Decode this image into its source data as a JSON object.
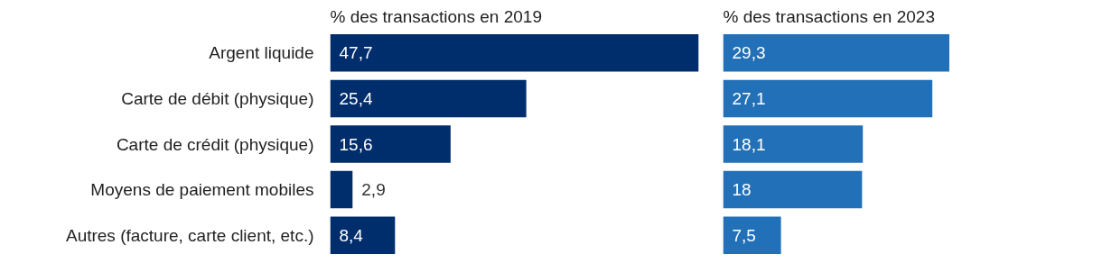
{
  "chart_data": [
    {
      "type": "bar",
      "orientation": "horizontal",
      "title": "% des transactions en 2019",
      "categories": [
        "Argent liquide",
        "Carte de débit (physique)",
        "Carte de crédit (physique)",
        "Moyens de paiement mobiles",
        "Autres (facture, carte client, etc.)"
      ],
      "values": [
        47.7,
        25.4,
        15.6,
        2.9,
        8.4
      ],
      "value_labels": [
        "47,7",
        "25,4",
        "15,6",
        "2,9",
        "8,4"
      ],
      "color": "#002d6b",
      "tick_labels": "y"
    },
    {
      "type": "bar",
      "orientation": "horizontal",
      "title": "% des transactions en 2023",
      "categories": [
        null,
        null,
        null,
        null,
        null
      ],
      "values": [
        29.3,
        27.1,
        18.1,
        18,
        7.5
      ],
      "value_labels": [
        "29,3",
        "27,1",
        "18,1",
        "18",
        "7,5"
      ],
      "color": "#2170b8",
      "tick_labels": false
    }
  ]
}
